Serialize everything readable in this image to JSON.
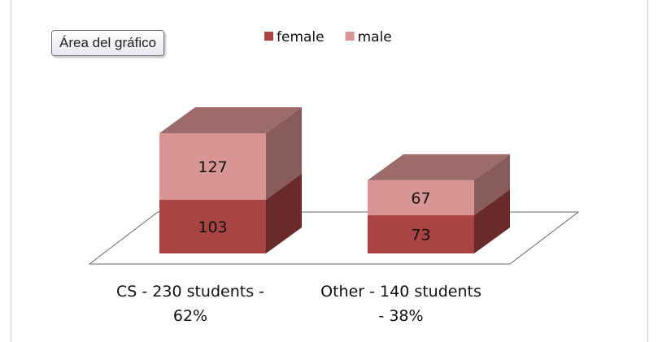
{
  "tooltip": {
    "label": "Área del gráfico"
  },
  "chart_data": {
    "type": "bar",
    "stacked": true,
    "three_d": true,
    "title": "",
    "categories": [
      "CS - 230 students - 62%",
      "Other - 140 students - 38%"
    ],
    "category_lines": [
      [
        "CS - 230 students -",
        "62%"
      ],
      [
        "Other - 140 students",
        "- 38%"
      ]
    ],
    "series": [
      {
        "name": "female",
        "values": [
          103,
          73
        ],
        "color": "#a94443"
      },
      {
        "name": "male",
        "values": [
          127,
          67
        ],
        "color": "#d99593"
      }
    ],
    "legend_position": "top",
    "data_labels": true,
    "grid": false,
    "ylim": [
      0,
      230
    ]
  }
}
